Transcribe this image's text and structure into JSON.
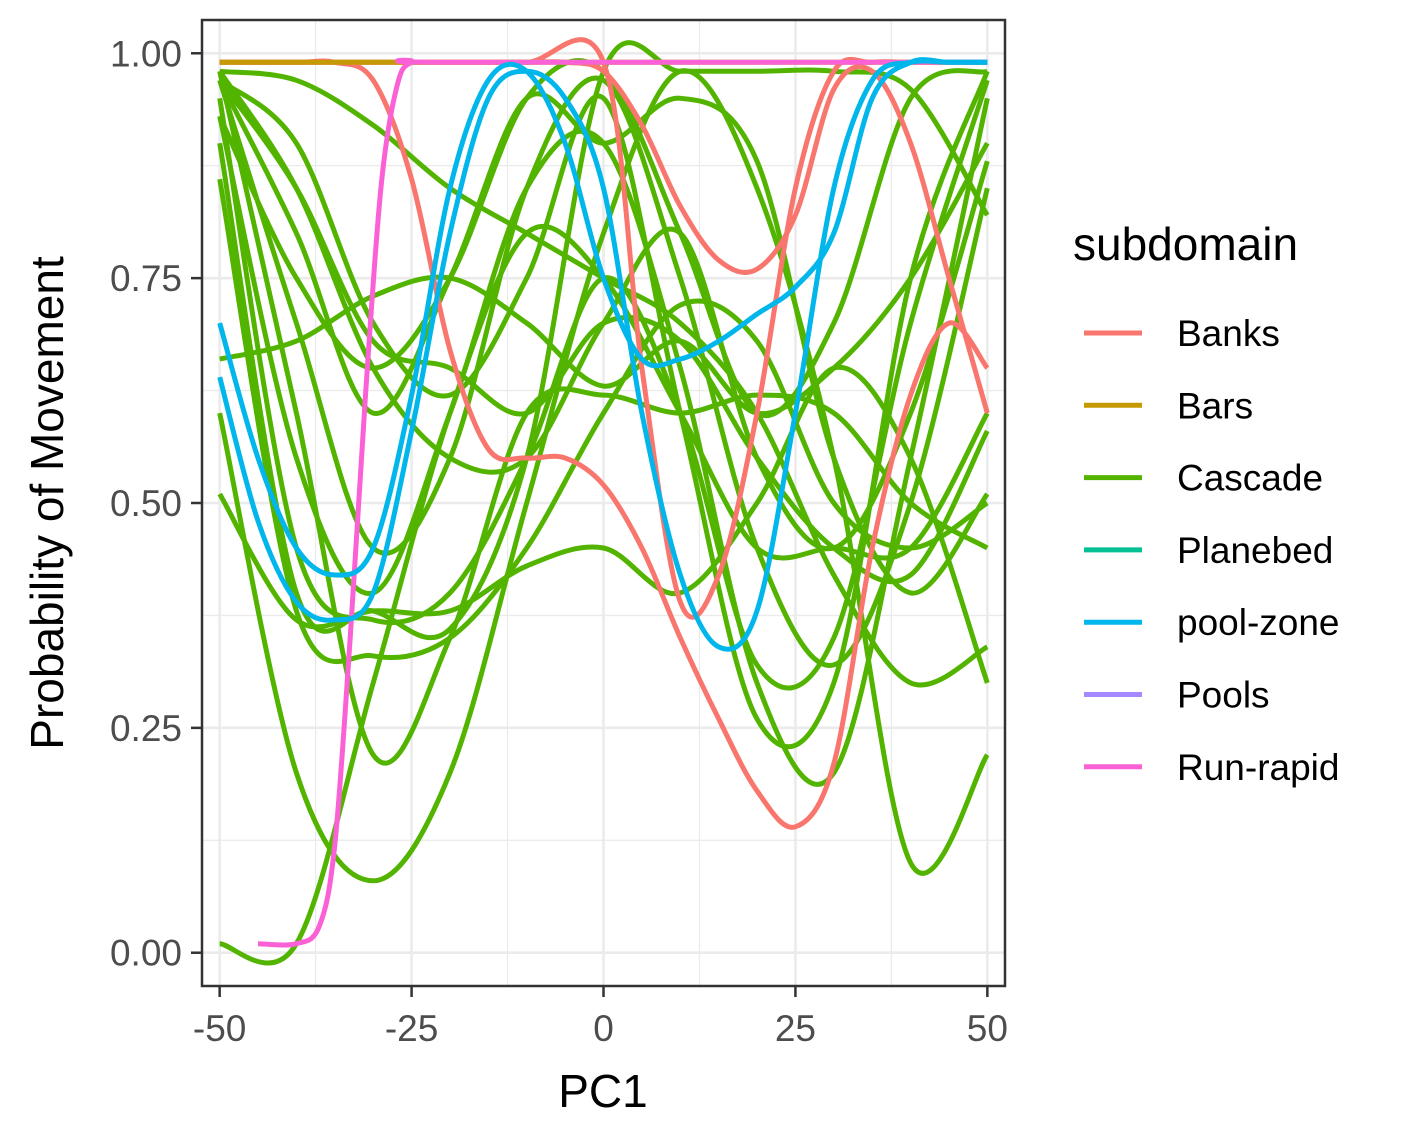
{
  "chart_data": {
    "type": "line",
    "xlabel": "PC1",
    "ylabel": "Probability of Movement",
    "xlim": [
      -52.3,
      52.3
    ],
    "ylim": [
      -0.037,
      1.037
    ],
    "x_ticks": [
      -50,
      -25,
      0,
      25,
      50
    ],
    "x_tick_labels": [
      "-50",
      "-25",
      "0",
      "25",
      "50"
    ],
    "y_ticks": [
      0,
      0.25,
      0.5,
      0.75,
      1.0
    ],
    "y_tick_labels": [
      "0.00",
      "0.25",
      "0.50",
      "0.75",
      "1.00"
    ],
    "grid": true,
    "legend": {
      "title": "subdomain",
      "placement": "right",
      "entries": [
        {
          "label": "Banks",
          "color": "#F8766D"
        },
        {
          "label": "Bars",
          "color": "#C49A00"
        },
        {
          "label": "Cascade",
          "color": "#53B400"
        },
        {
          "label": "Planebed",
          "color": "#00C094"
        },
        {
          "label": "pool-zone",
          "color": "#00B6EB"
        },
        {
          "label": "Pools",
          "color": "#A58AFF"
        },
        {
          "label": "Run-rapid",
          "color": "#FB61D7"
        }
      ]
    },
    "series": [
      {
        "group": "Cascade",
        "color": "#53B400",
        "x": [
          -50,
          -40,
          -30,
          -20,
          -10,
          0,
          10,
          20,
          30,
          40,
          50
        ],
        "y": [
          0.98,
          0.85,
          0.65,
          0.55,
          0.55,
          0.7,
          0.8,
          0.55,
          0.45,
          0.6,
          0.88
        ]
      },
      {
        "group": "Cascade",
        "color": "#53B400",
        "x": [
          -50,
          -40,
          -30,
          -20,
          -10,
          0,
          10,
          20,
          30,
          40,
          50
        ],
        "y": [
          0.97,
          0.7,
          0.45,
          0.55,
          0.85,
          0.97,
          0.75,
          0.45,
          0.32,
          0.5,
          0.85
        ]
      },
      {
        "group": "Cascade",
        "color": "#53B400",
        "x": [
          -50,
          -40,
          -30,
          -20,
          -10,
          0,
          10,
          20,
          30,
          40,
          50
        ],
        "y": [
          0.93,
          0.55,
          0.4,
          0.6,
          0.85,
          0.9,
          0.65,
          0.3,
          0.2,
          0.55,
          0.95
        ]
      },
      {
        "group": "Cascade",
        "color": "#53B400",
        "x": [
          -50,
          -40,
          -30,
          -20,
          -10,
          0,
          10,
          20,
          30,
          40,
          50
        ],
        "y": [
          0.95,
          0.45,
          0.37,
          0.4,
          0.55,
          0.75,
          0.6,
          0.32,
          0.35,
          0.7,
          0.97
        ]
      },
      {
        "group": "Cascade",
        "color": "#53B400",
        "x": [
          -50,
          -40,
          -30,
          -20,
          -10,
          0,
          10,
          20,
          30,
          40,
          50
        ],
        "y": [
          0.86,
          0.38,
          0.33,
          0.35,
          0.45,
          0.6,
          0.72,
          0.68,
          0.5,
          0.45,
          0.5
        ]
      },
      {
        "group": "Cascade",
        "color": "#53B400",
        "x": [
          -50,
          -40,
          -30,
          -20,
          -10,
          0,
          10,
          20,
          30,
          40,
          50
        ],
        "y": [
          0.98,
          0.6,
          0.22,
          0.35,
          0.6,
          0.62,
          0.6,
          0.62,
          0.6,
          0.5,
          0.45
        ]
      },
      {
        "group": "Cascade",
        "color": "#53B400",
        "x": [
          -50,
          -40,
          -30,
          -20,
          -10,
          0,
          10,
          20,
          30,
          40,
          50
        ],
        "y": [
          0.6,
          0.2,
          0.08,
          0.2,
          0.5,
          0.8,
          0.98,
          0.85,
          0.55,
          0.1,
          0.22
        ]
      },
      {
        "group": "Cascade",
        "color": "#53B400",
        "x": [
          -50,
          -40,
          -30,
          -20,
          -10,
          0,
          10,
          20,
          30,
          40,
          50
        ],
        "y": [
          0.51,
          0.37,
          0.38,
          0.38,
          0.43,
          0.45,
          0.4,
          0.5,
          0.65,
          0.55,
          0.3
        ]
      },
      {
        "group": "Cascade",
        "color": "#53B400",
        "x": [
          -50,
          -40,
          -30,
          -20,
          -10,
          0,
          10,
          20,
          30,
          40,
          50
        ],
        "y": [
          0.01,
          0.01,
          0.3,
          0.6,
          0.8,
          0.75,
          0.6,
          0.45,
          0.45,
          0.45,
          0.6
        ]
      },
      {
        "group": "Cascade",
        "color": "#53B400",
        "x": [
          -50,
          -40,
          -30,
          -20,
          -10,
          0,
          10,
          20,
          30,
          40,
          50
        ],
        "y": [
          0.66,
          0.68,
          0.73,
          0.75,
          0.7,
          0.63,
          0.68,
          0.6,
          0.65,
          0.75,
          0.9
        ]
      },
      {
        "group": "Cascade",
        "color": "#53B400",
        "x": [
          -50,
          -40,
          -30,
          -20,
          -10,
          0,
          10,
          20,
          30,
          40,
          50
        ],
        "y": [
          0.97,
          0.9,
          0.7,
          0.62,
          0.75,
          0.95,
          0.6,
          0.26,
          0.3,
          0.75,
          0.98
        ]
      },
      {
        "group": "Cascade",
        "color": "#53B400",
        "x": [
          -50,
          -40,
          -30,
          -20,
          -10,
          0,
          10,
          20,
          30,
          40,
          50
        ],
        "y": [
          0.97,
          0.85,
          0.68,
          0.65,
          0.6,
          0.7,
          0.68,
          0.55,
          0.45,
          0.42,
          0.58
        ]
      },
      {
        "group": "Cascade",
        "color": "#53B400",
        "x": [
          -50,
          -40,
          -30,
          -20,
          -10,
          0,
          10,
          20,
          30,
          40,
          50
        ],
        "y": [
          0.98,
          0.97,
          0.92,
          0.85,
          0.8,
          0.75,
          0.7,
          0.6,
          0.42,
          0.3,
          0.34
        ]
      },
      {
        "group": "Cascade",
        "color": "#53B400",
        "x": [
          -50,
          -40,
          -30,
          -20,
          -10,
          0,
          10,
          20,
          30,
          40,
          50
        ],
        "y": [
          0.93,
          0.75,
          0.65,
          0.75,
          0.95,
          0.98,
          0.8,
          0.6,
          0.7,
          0.95,
          0.98
        ]
      },
      {
        "group": "Cascade",
        "color": "#53B400",
        "x": [
          -50,
          -40,
          -30,
          -20,
          -10,
          0,
          10,
          20,
          30,
          40,
          50
        ],
        "y": [
          0.97,
          0.8,
          0.6,
          0.75,
          0.95,
          0.9,
          0.95,
          0.88,
          0.55,
          0.4,
          0.51
        ]
      },
      {
        "group": "Cascade",
        "color": "#53B400",
        "x": [
          -50,
          -40,
          -30,
          -20,
          -10,
          0,
          10,
          20,
          30,
          40,
          50
        ],
        "y": [
          0.9,
          0.4,
          0.38,
          0.36,
          0.55,
          0.98,
          0.98,
          0.98,
          0.98,
          0.96,
          0.82
        ]
      },
      {
        "group": "Banks",
        "color": "#F8766D",
        "x": [
          -50,
          -40,
          -35,
          -30,
          -25,
          -20,
          -15,
          -10,
          -5,
          0,
          5,
          10,
          15,
          20,
          25,
          30,
          35,
          40,
          45,
          50
        ],
        "y": [
          0.99,
          0.99,
          0.99,
          0.97,
          0.86,
          0.67,
          0.56,
          0.55,
          0.55,
          0.52,
          0.45,
          0.35,
          0.26,
          0.18,
          0.14,
          0.21,
          0.45,
          0.62,
          0.7,
          0.65
        ]
      },
      {
        "group": "Banks",
        "color": "#F8766D",
        "x": [
          -50,
          -40,
          -30,
          -20,
          -10,
          -5,
          0,
          5,
          10,
          15,
          20,
          25,
          30,
          35,
          40,
          45,
          50
        ],
        "y": [
          0.99,
          0.99,
          0.99,
          0.99,
          0.99,
          0.99,
          0.98,
          0.92,
          0.83,
          0.77,
          0.76,
          0.82,
          0.96,
          0.98,
          0.9,
          0.75,
          0.6
        ]
      },
      {
        "group": "Banks",
        "color": "#F8766D",
        "x": [
          -50,
          -40,
          -30,
          -20,
          -10,
          0,
          5,
          10,
          15,
          20,
          25,
          30,
          35,
          40,
          50
        ],
        "y": [
          0.99,
          0.99,
          0.99,
          0.99,
          0.99,
          0.99,
          0.65,
          0.39,
          0.42,
          0.6,
          0.85,
          0.98,
          0.99,
          0.99,
          0.99
        ]
      },
      {
        "group": "Bars",
        "color": "#C49A00",
        "x": [
          -50,
          50
        ],
        "y": [
          0.99,
          0.99
        ]
      },
      {
        "group": "Run-rapid",
        "color": "#FB61D7",
        "x": [
          -45,
          -40,
          -37,
          -35,
          -33,
          -31,
          -29,
          -27,
          -25,
          -20,
          50
        ],
        "y": [
          0.01,
          0.01,
          0.03,
          0.12,
          0.35,
          0.62,
          0.85,
          0.96,
          0.99,
          0.99,
          0.99
        ]
      },
      {
        "group": "pool-zone",
        "color": "#00B6EB",
        "x": [
          -50,
          -45,
          -40,
          -35,
          -30,
          -25,
          -20,
          -15,
          -10,
          -5,
          0,
          5,
          10,
          15,
          20,
          25,
          30,
          35,
          40,
          45,
          50
        ],
        "y": [
          0.7,
          0.55,
          0.45,
          0.42,
          0.45,
          0.62,
          0.85,
          0.97,
          0.98,
          0.9,
          0.75,
          0.66,
          0.66,
          0.68,
          0.71,
          0.74,
          0.8,
          0.95,
          0.99,
          0.99,
          0.99
        ]
      },
      {
        "group": "pool-zone",
        "color": "#00B6EB",
        "x": [
          -50,
          -45,
          -40,
          -35,
          -30,
          -25,
          -20,
          -15,
          -10,
          -5,
          0,
          5,
          10,
          15,
          20,
          25,
          30,
          35,
          40,
          45,
          50
        ],
        "y": [
          0.64,
          0.48,
          0.39,
          0.37,
          0.4,
          0.58,
          0.8,
          0.95,
          0.98,
          0.95,
          0.85,
          0.6,
          0.42,
          0.34,
          0.38,
          0.6,
          0.85,
          0.97,
          0.99,
          0.99,
          0.99
        ]
      }
    ]
  }
}
